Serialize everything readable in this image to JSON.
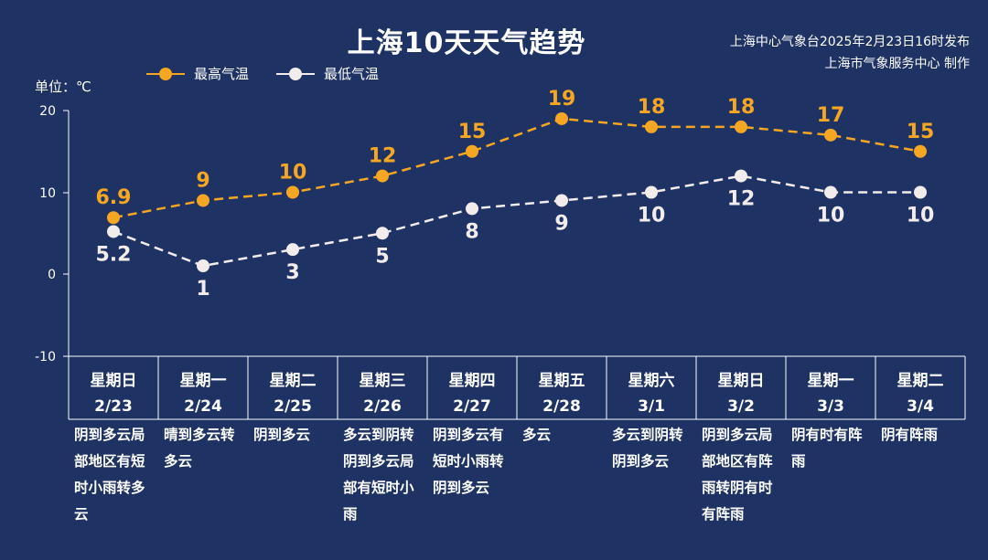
{
  "header": {
    "title": "上海10天天气趋势",
    "issuer_line1": "上海中心气象台2025年2月23日16时发布",
    "issuer_line2": "上海市气象服务中心 制作"
  },
  "unit_label": "单位：℃",
  "legend": {
    "high_label": "最高气温",
    "low_label": "最低气温"
  },
  "colors": {
    "background": "#1f3264",
    "high": "#f5a623",
    "low": "#f2ecec",
    "axis": "#ffffff"
  },
  "chart_data": {
    "type": "line",
    "x": [
      "星期日 2/23",
      "星期一 2/24",
      "星期二 2/25",
      "星期三 2/26",
      "星期四 2/27",
      "星期五 2/28",
      "星期六 3/1",
      "星期日 3/2",
      "星期一 3/3",
      "星期二 3/4"
    ],
    "weekdays": [
      "星期日",
      "星期一",
      "星期二",
      "星期三",
      "星期四",
      "星期五",
      "星期六",
      "星期日",
      "星期一",
      "星期二"
    ],
    "dates": [
      "2/23",
      "2/24",
      "2/25",
      "2/26",
      "2/27",
      "2/28",
      "3/1",
      "3/2",
      "3/3",
      "3/4"
    ],
    "series": [
      {
        "name": "最高气温",
        "values": [
          6.9,
          9,
          10,
          12,
          15,
          19,
          18,
          18,
          17,
          15
        ],
        "labels": [
          "6.9",
          "9",
          "10",
          "12",
          "15",
          "19",
          "18",
          "18",
          "17",
          "15"
        ],
        "color": "#f5a623"
      },
      {
        "name": "最低气温",
        "values": [
          5.2,
          1,
          3,
          5,
          8,
          9,
          10,
          12,
          10,
          10
        ],
        "labels": [
          "5.2",
          "1",
          "3",
          "5",
          "8",
          "9",
          "10",
          "12",
          "10",
          "10"
        ],
        "color": "#f2ecec"
      }
    ],
    "title": "上海10天天气趋势",
    "ylabel": "单位：℃",
    "ylim": [
      -10,
      20
    ],
    "yticks": [
      "20",
      "10",
      "0",
      "-10"
    ],
    "line_style": "dashed",
    "legend_position": "top-left",
    "grid": false
  },
  "descriptions": [
    "阴到多云局部地区有短时小雨转多云",
    "晴到多云转多云",
    "阴到多云",
    "多云到阴转阴到多云局部有短时小雨",
    "阴到多云有短时小雨转阴到多云",
    "多云",
    "多云到阴转阴到多云",
    "阴到多云局部地区有阵雨转阴有时有阵雨",
    "阴有时有阵雨",
    "阴有阵雨"
  ]
}
